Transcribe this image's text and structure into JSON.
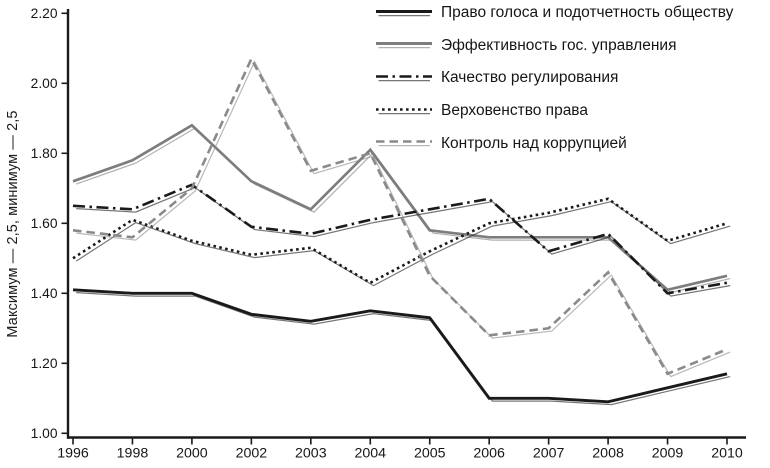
{
  "chart_data": {
    "type": "line",
    "title": "",
    "y_axis_title": "Максимум — 2,5, минимум — 2,5",
    "x_categories": [
      "1996",
      "1998",
      "2000",
      "2002",
      "2003",
      "2004",
      "2005",
      "2006",
      "2007",
      "2008",
      "2009",
      "2010"
    ],
    "ylim": [
      1.0,
      2.2
    ],
    "ytick_labels": [
      "2.20",
      "2.00",
      "1.80",
      "1.60",
      "1.40",
      "1.20",
      "1.00"
    ],
    "grid": false,
    "legend_position": "top-right",
    "axis_color": "#1a1a1a",
    "series": [
      {
        "name": "Право голоса и подотчетность обществу",
        "style": "solid",
        "color": "#1a1a1a",
        "values": [
          1.41,
          1.4,
          1.4,
          1.34,
          1.32,
          1.35,
          1.33,
          1.1,
          1.1,
          1.09,
          1.13,
          1.17
        ]
      },
      {
        "name": "Эффективность гос. управления",
        "style": "solid",
        "color": "#7d7d7d",
        "values": [
          1.72,
          1.78,
          1.88,
          1.72,
          1.64,
          1.81,
          1.58,
          1.56,
          1.56,
          1.56,
          1.41,
          1.45
        ]
      },
      {
        "name": "Качество регулирования",
        "style": "dashdot",
        "color": "#1a1a1a",
        "values": [
          1.65,
          1.64,
          1.71,
          1.59,
          1.57,
          1.61,
          1.64,
          1.67,
          1.52,
          1.57,
          1.4,
          1.43
        ]
      },
      {
        "name": "Верховенство права",
        "style": "dotted",
        "color": "#1a1a1a",
        "values": [
          1.5,
          1.61,
          1.55,
          1.51,
          1.53,
          1.43,
          1.52,
          1.6,
          1.63,
          1.67,
          1.55,
          1.6
        ]
      },
      {
        "name": "Контроль над коррупцией",
        "style": "dashed",
        "color": "#8a8a8a",
        "values": [
          1.58,
          1.56,
          1.7,
          2.07,
          1.75,
          1.8,
          1.45,
          1.28,
          1.3,
          1.46,
          1.17,
          1.24
        ]
      }
    ]
  }
}
